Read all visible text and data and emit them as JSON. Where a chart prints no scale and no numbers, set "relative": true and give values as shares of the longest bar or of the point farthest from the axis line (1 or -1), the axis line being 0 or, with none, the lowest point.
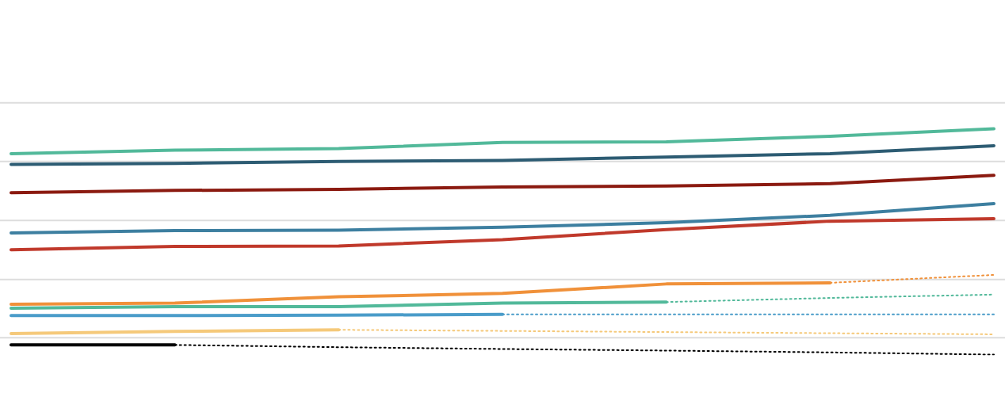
{
  "chart_data": {
    "type": "line",
    "relative": true,
    "legend": false,
    "ref_lines": [
      {
        "axis": "y",
        "value": 1.115,
        "color": "#dddddd"
      },
      {
        "axis": "y",
        "value": 0.855,
        "color": "#dddddd"
      },
      {
        "axis": "y",
        "value": 0.594,
        "color": "#dddddd"
      },
      {
        "axis": "y",
        "value": 0.333,
        "color": "#dddddd"
      },
      {
        "axis": "y",
        "value": 0.075,
        "color": "#dddddd"
      }
    ],
    "marker": "none",
    "categories": [
      null,
      null,
      null,
      null,
      null,
      null,
      null
    ],
    "series": [
      {
        "color": "#52b99a",
        "line_style": "solid",
        "values": [
          0.89,
          0.905,
          0.912,
          0.94,
          0.942,
          0.967,
          1.0
        ]
      },
      {
        "color": "#2d5c73",
        "line_style": "solid",
        "values": [
          0.842,
          0.847,
          0.855,
          0.86,
          0.875,
          0.89,
          0.925
        ]
      },
      {
        "color": "#8b1a10",
        "line_style": "solid",
        "values": [
          0.717,
          0.727,
          0.732,
          0.742,
          0.747,
          0.757,
          0.794
        ]
      },
      {
        "color": "#3d7fa0",
        "line_style": "solid",
        "values": [
          0.539,
          0.549,
          0.551,
          0.564,
          0.584,
          0.617,
          0.669
        ]
      },
      {
        "color": "#c0392b",
        "line_style": "solid",
        "values": [
          0.464,
          0.479,
          0.481,
          0.509,
          0.554,
          0.591,
          0.602
        ]
      },
      {
        "color": "#f0913a",
        "line_style": "solid",
        "values": [
          0.223,
          0.228,
          0.256,
          0.271,
          0.313,
          0.318,
          null
        ]
      },
      {
        "color": "#f0913a",
        "line_style": "dotted",
        "values": [
          null,
          null,
          null,
          null,
          null,
          0.318,
          0.353
        ]
      },
      {
        "color": "#52b99a",
        "line_style": "solid",
        "values": [
          0.206,
          0.213,
          0.213,
          0.228,
          0.233,
          null,
          null
        ]
      },
      {
        "color": "#52b99a",
        "line_style": "dotted",
        "values": [
          null,
          null,
          null,
          null,
          0.233,
          0.251,
          0.266
        ]
      },
      {
        "color": "#4a9cc9",
        "line_style": "solid",
        "values": [
          0.173,
          0.173,
          0.175,
          0.178,
          null,
          null,
          null
        ]
      },
      {
        "color": "#4a9cc9",
        "line_style": "dotted",
        "values": [
          null,
          null,
          null,
          0.178,
          0.178,
          0.178,
          0.178
        ]
      },
      {
        "color": "#f5c97a",
        "line_style": "solid",
        "values": [
          0.093,
          0.103,
          0.11,
          null,
          null,
          null,
          null
        ]
      },
      {
        "color": "#f5c97a",
        "line_style": "dotted",
        "values": [
          null,
          null,
          0.11,
          0.105,
          0.1,
          0.095,
          0.09
        ]
      },
      {
        "color": "#000000",
        "line_style": "solid",
        "values": [
          0.043,
          0.043,
          null,
          null,
          null,
          null,
          null
        ]
      },
      {
        "color": "#000000",
        "line_style": "dotted",
        "values": [
          null,
          0.043,
          0.033,
          0.025,
          0.018,
          0.01,
          0.0
        ]
      }
    ]
  }
}
